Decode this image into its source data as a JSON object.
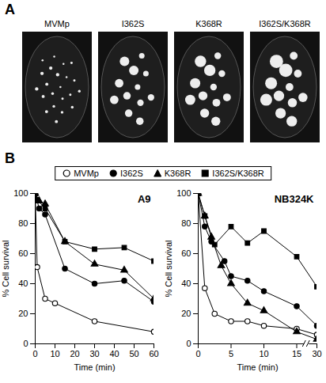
{
  "panel_a": {
    "letter": "A",
    "labels": [
      "MVMp",
      "I362S",
      "K368R",
      "I362S/K368R"
    ]
  },
  "panel_b": {
    "letter": "B",
    "legend": "top"
  },
  "chart_data": [
    {
      "type": "line",
      "title": "A9",
      "x_label": "Time (min)",
      "y_label": "% Cell survival",
      "xlim": [
        0,
        60
      ],
      "xticks": [
        0,
        10,
        20,
        30,
        40,
        50,
        60
      ],
      "ylim": [
        0,
        100
      ],
      "yticks": [
        0,
        20,
        40,
        60,
        80,
        100
      ],
      "legend": "top",
      "series": [
        {
          "name": "MVMp",
          "color": "#000000",
          "marker": "open circle",
          "x": [
            0,
            1,
            5,
            10,
            30,
            60
          ],
          "values": [
            100,
            51,
            30,
            27,
            15,
            8
          ]
        },
        {
          "name": "I362S",
          "color": "#000000",
          "marker": "circle",
          "x": [
            0,
            2,
            5,
            15,
            30,
            45,
            60
          ],
          "values": [
            100,
            90,
            86,
            50,
            40,
            42,
            28
          ]
        },
        {
          "name": "K368R",
          "color": "#000000",
          "marker": "triangle",
          "x": [
            0,
            2,
            5,
            15,
            30,
            45,
            60
          ],
          "values": [
            100,
            95,
            93,
            68,
            53,
            49,
            30
          ]
        },
        {
          "name": "I362S/K368R",
          "color": "#000000",
          "marker": "square",
          "x": [
            0,
            1,
            5,
            15,
            30,
            45,
            60
          ],
          "values": [
            100,
            96,
            90,
            68,
            63,
            64,
            55
          ]
        }
      ]
    },
    {
      "type": "line",
      "title": "NB324K",
      "x_label": "Time (min)",
      "y_label": "% Cell survival",
      "xlim": [
        0,
        30
      ],
      "xticks": [
        0,
        5,
        10,
        15,
        30
      ],
      "ylim": [
        0,
        100
      ],
      "yticks": [
        0,
        20,
        40,
        60,
        80,
        100
      ],
      "legend": "top",
      "series": [
        {
          "name": "MVMp",
          "color": "#000000",
          "marker": "open circle",
          "x": [
            0,
            1,
            2.5,
            5,
            7.5,
            10,
            15,
            30
          ],
          "values": [
            100,
            37,
            20,
            15,
            15,
            12,
            10,
            6
          ]
        },
        {
          "name": "I362S",
          "color": "#000000",
          "marker": "circle",
          "x": [
            0,
            1,
            2,
            4,
            5,
            7.5,
            10,
            15,
            30
          ],
          "values": [
            100,
            78,
            68,
            55,
            45,
            42,
            35,
            25,
            12
          ]
        },
        {
          "name": "K368R",
          "color": "#000000",
          "marker": "triangle",
          "x": [
            0,
            1,
            2,
            3.5,
            5,
            7.5,
            10,
            15,
            30
          ],
          "values": [
            100,
            85,
            71,
            52,
            40,
            27,
            22,
            8,
            3
          ]
        },
        {
          "name": "I362S/K368R",
          "color": "#000000",
          "marker": "square",
          "x": [
            0,
            1,
            2.5,
            5,
            7.5,
            10,
            15,
            30
          ],
          "values": [
            100,
            85,
            66,
            78,
            67,
            75,
            58,
            38
          ]
        }
      ]
    }
  ]
}
